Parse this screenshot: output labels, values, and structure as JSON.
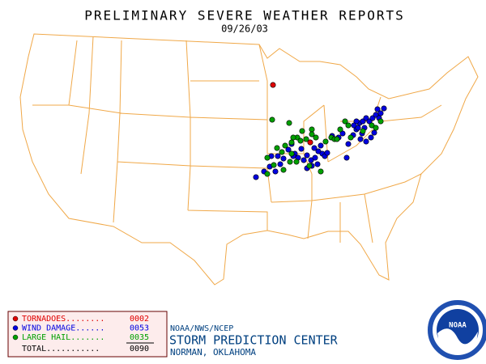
{
  "header": {
    "title": "PRELIMINARY SEVERE WEATHER REPORTS",
    "date": "09/26/03"
  },
  "legend": {
    "rows": [
      {
        "label": "TORNADOES........",
        "count": "0002",
        "color": "#e00000"
      },
      {
        "label": "WIND DAMAGE......",
        "count": "0053",
        "color": "#0000e0"
      },
      {
        "label": "LARGE HAIL.......",
        "count": "0035",
        "color": "#00a000"
      }
    ],
    "total": {
      "label": "TOTAL...........",
      "count": "0090"
    }
  },
  "footer": {
    "agency": "NOAA/NWS/NCEP",
    "center": "STORM PREDICTION CENTER",
    "location": "NORMAN, OKLAHOMA"
  },
  "logo": {
    "text": "NOAA"
  }
}
